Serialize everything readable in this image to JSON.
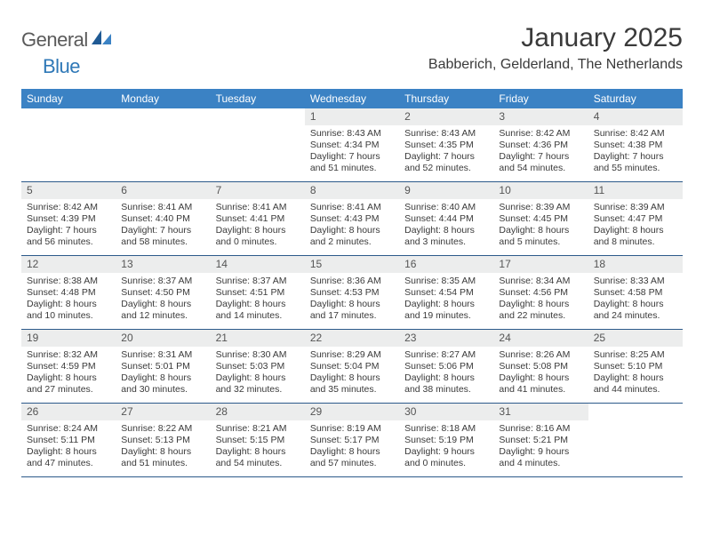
{
  "logo": {
    "part1": "General",
    "part2": "Blue"
  },
  "title": "January 2025",
  "location": "Babberich, Gelderland, The Netherlands",
  "colors": {
    "header_bg": "#3b82c4",
    "header_text": "#ffffff",
    "daynum_bg": "#eceded",
    "border": "#2c5a8a",
    "logo_accent": "#2f78b7"
  },
  "weekdays": [
    "Sunday",
    "Monday",
    "Tuesday",
    "Wednesday",
    "Thursday",
    "Friday",
    "Saturday"
  ],
  "weeks": [
    [
      null,
      null,
      null,
      {
        "n": "1",
        "sr": "Sunrise: 8:43 AM",
        "ss": "Sunset: 4:34 PM",
        "d1": "Daylight: 7 hours",
        "d2": "and 51 minutes."
      },
      {
        "n": "2",
        "sr": "Sunrise: 8:43 AM",
        "ss": "Sunset: 4:35 PM",
        "d1": "Daylight: 7 hours",
        "d2": "and 52 minutes."
      },
      {
        "n": "3",
        "sr": "Sunrise: 8:42 AM",
        "ss": "Sunset: 4:36 PM",
        "d1": "Daylight: 7 hours",
        "d2": "and 54 minutes."
      },
      {
        "n": "4",
        "sr": "Sunrise: 8:42 AM",
        "ss": "Sunset: 4:38 PM",
        "d1": "Daylight: 7 hours",
        "d2": "and 55 minutes."
      }
    ],
    [
      {
        "n": "5",
        "sr": "Sunrise: 8:42 AM",
        "ss": "Sunset: 4:39 PM",
        "d1": "Daylight: 7 hours",
        "d2": "and 56 minutes."
      },
      {
        "n": "6",
        "sr": "Sunrise: 8:41 AM",
        "ss": "Sunset: 4:40 PM",
        "d1": "Daylight: 7 hours",
        "d2": "and 58 minutes."
      },
      {
        "n": "7",
        "sr": "Sunrise: 8:41 AM",
        "ss": "Sunset: 4:41 PM",
        "d1": "Daylight: 8 hours",
        "d2": "and 0 minutes."
      },
      {
        "n": "8",
        "sr": "Sunrise: 8:41 AM",
        "ss": "Sunset: 4:43 PM",
        "d1": "Daylight: 8 hours",
        "d2": "and 2 minutes."
      },
      {
        "n": "9",
        "sr": "Sunrise: 8:40 AM",
        "ss": "Sunset: 4:44 PM",
        "d1": "Daylight: 8 hours",
        "d2": "and 3 minutes."
      },
      {
        "n": "10",
        "sr": "Sunrise: 8:39 AM",
        "ss": "Sunset: 4:45 PM",
        "d1": "Daylight: 8 hours",
        "d2": "and 5 minutes."
      },
      {
        "n": "11",
        "sr": "Sunrise: 8:39 AM",
        "ss": "Sunset: 4:47 PM",
        "d1": "Daylight: 8 hours",
        "d2": "and 8 minutes."
      }
    ],
    [
      {
        "n": "12",
        "sr": "Sunrise: 8:38 AM",
        "ss": "Sunset: 4:48 PM",
        "d1": "Daylight: 8 hours",
        "d2": "and 10 minutes."
      },
      {
        "n": "13",
        "sr": "Sunrise: 8:37 AM",
        "ss": "Sunset: 4:50 PM",
        "d1": "Daylight: 8 hours",
        "d2": "and 12 minutes."
      },
      {
        "n": "14",
        "sr": "Sunrise: 8:37 AM",
        "ss": "Sunset: 4:51 PM",
        "d1": "Daylight: 8 hours",
        "d2": "and 14 minutes."
      },
      {
        "n": "15",
        "sr": "Sunrise: 8:36 AM",
        "ss": "Sunset: 4:53 PM",
        "d1": "Daylight: 8 hours",
        "d2": "and 17 minutes."
      },
      {
        "n": "16",
        "sr": "Sunrise: 8:35 AM",
        "ss": "Sunset: 4:54 PM",
        "d1": "Daylight: 8 hours",
        "d2": "and 19 minutes."
      },
      {
        "n": "17",
        "sr": "Sunrise: 8:34 AM",
        "ss": "Sunset: 4:56 PM",
        "d1": "Daylight: 8 hours",
        "d2": "and 22 minutes."
      },
      {
        "n": "18",
        "sr": "Sunrise: 8:33 AM",
        "ss": "Sunset: 4:58 PM",
        "d1": "Daylight: 8 hours",
        "d2": "and 24 minutes."
      }
    ],
    [
      {
        "n": "19",
        "sr": "Sunrise: 8:32 AM",
        "ss": "Sunset: 4:59 PM",
        "d1": "Daylight: 8 hours",
        "d2": "and 27 minutes."
      },
      {
        "n": "20",
        "sr": "Sunrise: 8:31 AM",
        "ss": "Sunset: 5:01 PM",
        "d1": "Daylight: 8 hours",
        "d2": "and 30 minutes."
      },
      {
        "n": "21",
        "sr": "Sunrise: 8:30 AM",
        "ss": "Sunset: 5:03 PM",
        "d1": "Daylight: 8 hours",
        "d2": "and 32 minutes."
      },
      {
        "n": "22",
        "sr": "Sunrise: 8:29 AM",
        "ss": "Sunset: 5:04 PM",
        "d1": "Daylight: 8 hours",
        "d2": "and 35 minutes."
      },
      {
        "n": "23",
        "sr": "Sunrise: 8:27 AM",
        "ss": "Sunset: 5:06 PM",
        "d1": "Daylight: 8 hours",
        "d2": "and 38 minutes."
      },
      {
        "n": "24",
        "sr": "Sunrise: 8:26 AM",
        "ss": "Sunset: 5:08 PM",
        "d1": "Daylight: 8 hours",
        "d2": "and 41 minutes."
      },
      {
        "n": "25",
        "sr": "Sunrise: 8:25 AM",
        "ss": "Sunset: 5:10 PM",
        "d1": "Daylight: 8 hours",
        "d2": "and 44 minutes."
      }
    ],
    [
      {
        "n": "26",
        "sr": "Sunrise: 8:24 AM",
        "ss": "Sunset: 5:11 PM",
        "d1": "Daylight: 8 hours",
        "d2": "and 47 minutes."
      },
      {
        "n": "27",
        "sr": "Sunrise: 8:22 AM",
        "ss": "Sunset: 5:13 PM",
        "d1": "Daylight: 8 hours",
        "d2": "and 51 minutes."
      },
      {
        "n": "28",
        "sr": "Sunrise: 8:21 AM",
        "ss": "Sunset: 5:15 PM",
        "d1": "Daylight: 8 hours",
        "d2": "and 54 minutes."
      },
      {
        "n": "29",
        "sr": "Sunrise: 8:19 AM",
        "ss": "Sunset: 5:17 PM",
        "d1": "Daylight: 8 hours",
        "d2": "and 57 minutes."
      },
      {
        "n": "30",
        "sr": "Sunrise: 8:18 AM",
        "ss": "Sunset: 5:19 PM",
        "d1": "Daylight: 9 hours",
        "d2": "and 0 minutes."
      },
      {
        "n": "31",
        "sr": "Sunrise: 8:16 AM",
        "ss": "Sunset: 5:21 PM",
        "d1": "Daylight: 9 hours",
        "d2": "and 4 minutes."
      },
      null
    ]
  ]
}
